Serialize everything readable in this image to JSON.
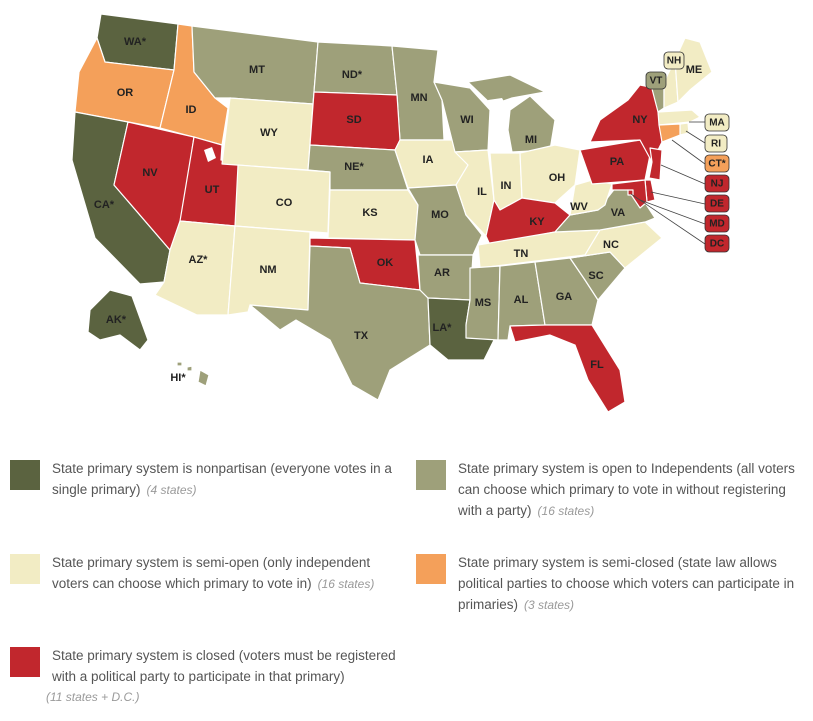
{
  "colors": {
    "nonpartisan": "#5b6340",
    "open": "#9ea07a",
    "semi_open": "#f2ecc4",
    "semi_closed": "#f4a05a",
    "closed": "#c1272d",
    "inland_water": "#ffffff"
  },
  "states": [
    {
      "abbr": "WA",
      "cat": "nonpartisan",
      "asterisk": true
    },
    {
      "abbr": "OR",
      "cat": "semi_closed",
      "asterisk": false
    },
    {
      "abbr": "ID",
      "cat": "semi_closed",
      "asterisk": false
    },
    {
      "abbr": "MT",
      "cat": "open",
      "asterisk": false
    },
    {
      "abbr": "ND",
      "cat": "open",
      "asterisk": true
    },
    {
      "abbr": "MN",
      "cat": "open",
      "asterisk": false
    },
    {
      "abbr": "CA",
      "cat": "nonpartisan",
      "asterisk": true
    },
    {
      "abbr": "NV",
      "cat": "closed",
      "asterisk": false
    },
    {
      "abbr": "UT",
      "cat": "closed",
      "asterisk": false
    },
    {
      "abbr": "WY",
      "cat": "semi_open",
      "asterisk": false
    },
    {
      "abbr": "SD",
      "cat": "closed",
      "asterisk": false
    },
    {
      "abbr": "NE",
      "cat": "open",
      "asterisk": true
    },
    {
      "abbr": "CO",
      "cat": "semi_open",
      "asterisk": false
    },
    {
      "abbr": "KS",
      "cat": "semi_open",
      "asterisk": false
    },
    {
      "abbr": "AZ",
      "cat": "semi_open",
      "asterisk": true
    },
    {
      "abbr": "NM",
      "cat": "semi_open",
      "asterisk": false
    },
    {
      "abbr": "OK",
      "cat": "closed",
      "asterisk": false
    },
    {
      "abbr": "TX",
      "cat": "open",
      "asterisk": false
    },
    {
      "abbr": "IA",
      "cat": "semi_open",
      "asterisk": false
    },
    {
      "abbr": "MO",
      "cat": "open",
      "asterisk": false
    },
    {
      "abbr": "AR",
      "cat": "open",
      "asterisk": false
    },
    {
      "abbr": "LA",
      "cat": "nonpartisan",
      "asterisk": true
    },
    {
      "abbr": "WI",
      "cat": "open",
      "asterisk": false
    },
    {
      "abbr": "IL",
      "cat": "semi_open",
      "asterisk": false
    },
    {
      "abbr": "MI",
      "cat": "open",
      "asterisk": false
    },
    {
      "abbr": "IN",
      "cat": "semi_open",
      "asterisk": false
    },
    {
      "abbr": "OH",
      "cat": "semi_open",
      "asterisk": false
    },
    {
      "abbr": "KY",
      "cat": "closed",
      "asterisk": false
    },
    {
      "abbr": "TN",
      "cat": "semi_open",
      "asterisk": false
    },
    {
      "abbr": "MS",
      "cat": "open",
      "asterisk": false
    },
    {
      "abbr": "AL",
      "cat": "open",
      "asterisk": false
    },
    {
      "abbr": "GA",
      "cat": "open",
      "asterisk": false
    },
    {
      "abbr": "FL",
      "cat": "closed",
      "asterisk": false
    },
    {
      "abbr": "SC",
      "cat": "open",
      "asterisk": false
    },
    {
      "abbr": "NC",
      "cat": "semi_open",
      "asterisk": false
    },
    {
      "abbr": "VA",
      "cat": "open",
      "asterisk": false
    },
    {
      "abbr": "WV",
      "cat": "semi_open",
      "asterisk": false
    },
    {
      "abbr": "PA",
      "cat": "closed",
      "asterisk": false
    },
    {
      "abbr": "NY",
      "cat": "closed",
      "asterisk": false
    },
    {
      "abbr": "VT",
      "cat": "open",
      "asterisk": false
    },
    {
      "abbr": "NH",
      "cat": "semi_open",
      "asterisk": false
    },
    {
      "abbr": "ME",
      "cat": "semi_open",
      "asterisk": false
    },
    {
      "abbr": "MA",
      "cat": "semi_open",
      "asterisk": false
    },
    {
      "abbr": "RI",
      "cat": "semi_open",
      "asterisk": false
    },
    {
      "abbr": "CT",
      "cat": "semi_closed",
      "asterisk": true
    },
    {
      "abbr": "NJ",
      "cat": "closed",
      "asterisk": false
    },
    {
      "abbr": "DE",
      "cat": "closed",
      "asterisk": false
    },
    {
      "abbr": "MD",
      "cat": "closed",
      "asterisk": false
    },
    {
      "abbr": "DC",
      "cat": "closed",
      "asterisk": false
    },
    {
      "abbr": "AK",
      "cat": "nonpartisan",
      "asterisk": true
    },
    {
      "abbr": "HI",
      "cat": "open",
      "asterisk": true
    }
  ],
  "legend": [
    {
      "cat": "nonpartisan",
      "text": "State primary system is nonpartisan (everyone votes in a single primary)",
      "count": "(4 states)"
    },
    {
      "cat": "open",
      "text": "State primary system is open to Independents (all voters can choose which primary to vote in without registering with a party)",
      "count": "(16 states)"
    },
    {
      "cat": "semi_open",
      "text": "State primary system is semi-open (only independent voters can choose which primary to vote in)",
      "count": "(16 states)"
    },
    {
      "cat": "semi_closed",
      "text": "State primary system is semi-closed (state law allows political parties to choose which voters can participate in primaries)",
      "count": "(3 states)"
    },
    {
      "cat": "closed",
      "text": "State primary system is closed (voters must be registered with a political party to participate in that primary)",
      "count": "(11 states + D.C.)"
    }
  ]
}
